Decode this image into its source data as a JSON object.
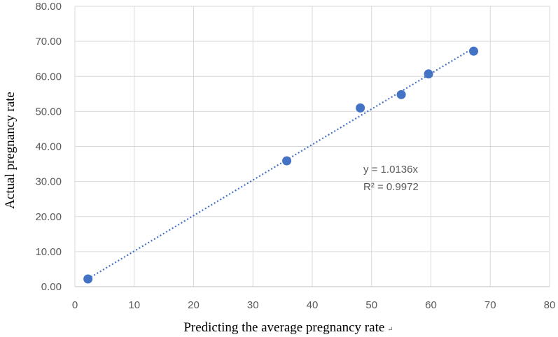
{
  "chart_data": {
    "type": "scatter",
    "xlabel": "Predicting the average pregnancy rate",
    "xlabel_suffix": "↵",
    "ylabel": "Actual pregnancy rate",
    "xlim": [
      0,
      80
    ],
    "ylim": [
      0,
      80
    ],
    "x_ticks": [
      0,
      10,
      20,
      30,
      40,
      50,
      60,
      70,
      80
    ],
    "x_tick_labels": [
      "0",
      "10",
      "20",
      "30",
      "40",
      "50",
      "60",
      "70",
      "80"
    ],
    "y_ticks": [
      0,
      10,
      20,
      30,
      40,
      50,
      60,
      70,
      80
    ],
    "y_tick_labels": [
      "0.00",
      "10.00",
      "20.00",
      "30.00",
      "40.00",
      "50.00",
      "60.00",
      "70.00",
      "80.00"
    ],
    "grid": true,
    "series": [
      {
        "color": "#4472c4",
        "x": [
          2.2,
          35.7,
          48.1,
          55.0,
          59.6,
          67.2
        ],
        "y": [
          2.2,
          35.9,
          51.0,
          54.8,
          60.7,
          67.2
        ]
      }
    ],
    "trendline": {
      "slope": 1.0136,
      "x_range": [
        2.2,
        67.2
      ],
      "style": "dotted",
      "color": "#4472c4",
      "equation": "y = 1.0136x",
      "r_squared": "R² = 0.9972"
    }
  }
}
